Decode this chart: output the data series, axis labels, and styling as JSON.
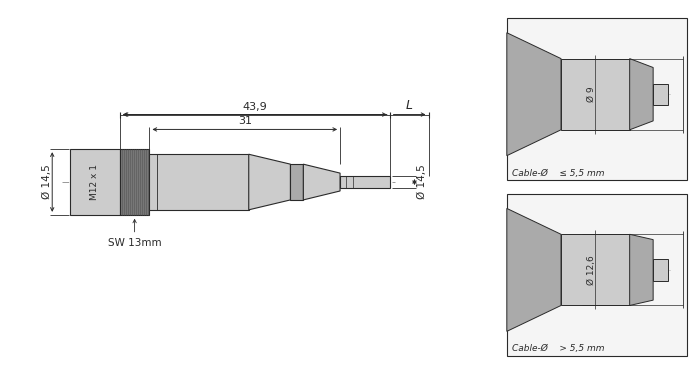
{
  "bg_color": "#ffffff",
  "line_color": "#2a2a2a",
  "dim_color": "#2a2a2a",
  "light_gray": "#cccccc",
  "mid_gray": "#aaaaaa",
  "dark_gray": "#777777",
  "fig_width": 6.97,
  "fig_height": 3.75,
  "annotations": {
    "dim_439": "43,9",
    "dim_31": "31",
    "dim_L": "L",
    "dim_145_left": "Ø 14,5",
    "dim_145_right": "Ø 14,5",
    "label_M12": "M12 x 1",
    "label_SW": "SW 13mm",
    "inset1_label": "Cable-Ø    ≤ 5,5 mm",
    "inset1_dim": "Ø 9",
    "inset2_label": "Cable-Ø    > 5,5 mm",
    "inset2_dim": "Ø 12,6"
  }
}
